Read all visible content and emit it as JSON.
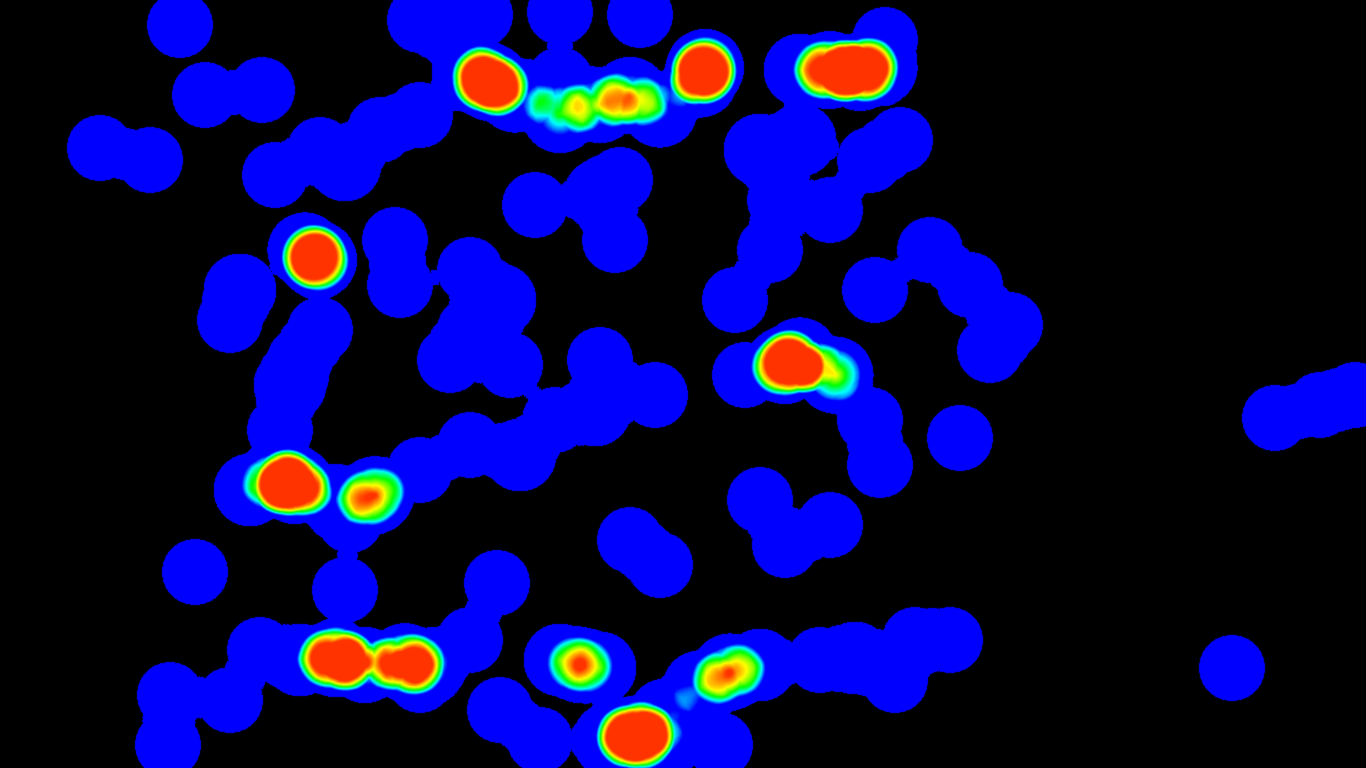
{
  "heatmap": {
    "colors": {
      "background": "#000000",
      "low": "#0000ff",
      "mid_low": "#00ffff",
      "mid": "#00ff00",
      "mid_high": "#ffff00",
      "high": "#ff3300"
    }
  }
}
